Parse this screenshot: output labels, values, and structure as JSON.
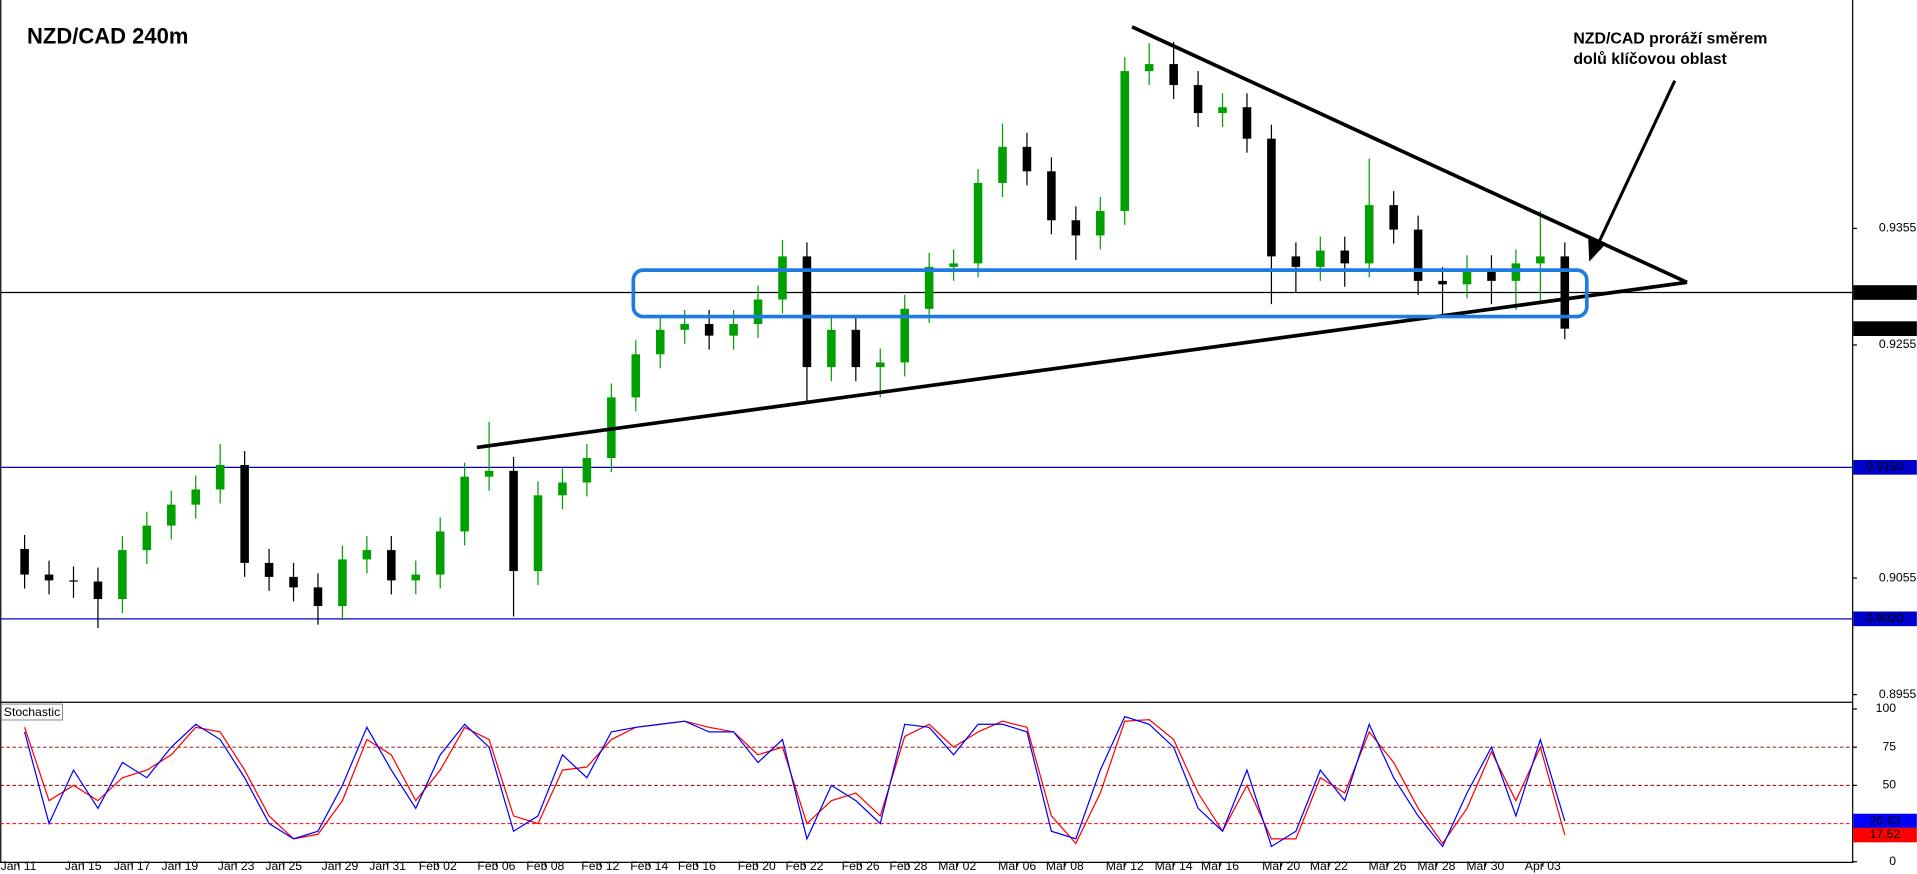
{
  "chart_data": [
    {
      "type": "candlestick",
      "title": "NZD/CAD 240m",
      "annotation": [
        "NZD/CAD proráží směrem",
        "dolů klíčovou oblast"
      ],
      "up_color": "#00a000",
      "down_color": "#000000",
      "open": [
        0.908,
        0.9058,
        0.9053,
        0.9052,
        0.9037,
        0.9079,
        0.91,
        0.9118,
        0.9131,
        0.9152,
        0.9068,
        0.9056,
        0.9047,
        0.9031,
        0.9071,
        0.9079,
        0.9053,
        0.9058,
        0.9095,
        0.9142,
        0.9147,
        0.9061,
        0.9126,
        0.9137,
        0.9158,
        0.921,
        0.9247,
        0.9268,
        0.9273,
        0.9263,
        0.9273,
        0.9294,
        0.9331,
        0.9236,
        0.9268,
        0.9236,
        0.924,
        0.9286,
        0.9322,
        0.9325,
        0.9394,
        0.9425,
        0.9404,
        0.9362,
        0.9349,
        0.937,
        0.949,
        0.9496,
        0.9478,
        0.9454,
        0.9459,
        0.9432,
        0.9331,
        0.9322,
        0.9336,
        0.9325,
        0.9375,
        0.9354,
        0.931,
        0.9307,
        0.932,
        0.931,
        0.9325,
        0.9331
      ],
      "high": [
        0.9092,
        0.907,
        0.9065,
        0.9064,
        0.9091,
        0.9112,
        0.913,
        0.9143,
        0.917,
        0.9164,
        0.908,
        0.9068,
        0.9059,
        0.9083,
        0.9091,
        0.9091,
        0.907,
        0.9107,
        0.9154,
        0.9189,
        0.9159,
        0.9138,
        0.9149,
        0.917,
        0.9222,
        0.9259,
        0.928,
        0.9285,
        0.9285,
        0.9285,
        0.9306,
        0.9345,
        0.9343,
        0.928,
        0.928,
        0.9252,
        0.9298,
        0.9334,
        0.9337,
        0.9406,
        0.9445,
        0.9437,
        0.9416,
        0.9374,
        0.9382,
        0.9502,
        0.9514,
        0.9515,
        0.949,
        0.9471,
        0.9471,
        0.9444,
        0.9343,
        0.9348,
        0.9348,
        0.9415,
        0.9387,
        0.9366,
        0.9322,
        0.9332,
        0.9332,
        0.9337,
        0.937,
        0.9343
      ],
      "low": [
        0.9046,
        0.9041,
        0.9038,
        0.9012,
        0.9025,
        0.9067,
        0.9088,
        0.9106,
        0.9119,
        0.9056,
        0.9044,
        0.9035,
        0.9015,
        0.9019,
        0.9059,
        0.9041,
        0.9041,
        0.9046,
        0.9083,
        0.913,
        0.9022,
        0.9049,
        0.9114,
        0.9125,
        0.9146,
        0.9198,
        0.9235,
        0.9256,
        0.9251,
        0.9251,
        0.9261,
        0.9282,
        0.9205,
        0.9224,
        0.9224,
        0.921,
        0.9228,
        0.9274,
        0.931,
        0.9313,
        0.9382,
        0.9392,
        0.935,
        0.9328,
        0.9337,
        0.9358,
        0.9478,
        0.9466,
        0.9442,
        0.9442,
        0.942,
        0.929,
        0.93,
        0.931,
        0.9305,
        0.9313,
        0.9342,
        0.9298,
        0.928,
        0.9295,
        0.929,
        0.9285,
        0.929,
        0.926
      ],
      "close": [
        0.9058,
        0.9053,
        0.9052,
        0.9037,
        0.9079,
        0.91,
        0.9118,
        0.9131,
        0.9152,
        0.9068,
        0.9056,
        0.9047,
        0.9031,
        0.9071,
        0.9079,
        0.9053,
        0.9058,
        0.9095,
        0.9142,
        0.9147,
        0.9061,
        0.9126,
        0.9137,
        0.9158,
        0.921,
        0.9247,
        0.9268,
        0.9273,
        0.9263,
        0.9273,
        0.9294,
        0.9331,
        0.9236,
        0.9268,
        0.9236,
        0.924,
        0.9286,
        0.9322,
        0.9325,
        0.9394,
        0.9425,
        0.9404,
        0.9362,
        0.9349,
        0.937,
        0.949,
        0.9496,
        0.9478,
        0.9454,
        0.9459,
        0.9432,
        0.9331,
        0.9322,
        0.9336,
        0.9325,
        0.9375,
        0.9354,
        0.931,
        0.9307,
        0.932,
        0.931,
        0.9325,
        0.9331,
        0.9269
      ],
      "ylim": [
        0.895,
        0.9551
      ],
      "yticks": [
        0.9355,
        0.9255,
        0.9055,
        0.8955
      ],
      "levels": [
        {
          "value": 0.93,
          "label": "0.9300",
          "color": "#000000"
        },
        {
          "value": 0.915,
          "label": "0.9150",
          "color": "#0000cc"
        },
        {
          "value": 0.902,
          "label": "0.9020",
          "color": "#0000cc"
        }
      ],
      "xlim": [
        -1,
        74.75
      ],
      "xticks": [
        {
          "value": -0.25,
          "label": "Jan 11"
        },
        {
          "value": 2.4,
          "label": "Jan 15"
        },
        {
          "value": 4.4,
          "label": "Jan 17"
        },
        {
          "value": 6.35,
          "label": "Jan 19"
        },
        {
          "value": 8.65,
          "label": "Jan 23"
        },
        {
          "value": 10.6,
          "label": "Jan 25"
        },
        {
          "value": 12.9,
          "label": "Jan 29"
        },
        {
          "value": 14.85,
          "label": "Jan 31"
        },
        {
          "value": 16.9,
          "label": "Feb 02"
        },
        {
          "value": 19.3,
          "label": "Feb 06"
        },
        {
          "value": 21.3,
          "label": "Feb 08"
        },
        {
          "value": 23.55,
          "label": "Feb 12"
        },
        {
          "value": 25.55,
          "label": "Feb 14"
        },
        {
          "value": 27.5,
          "label": "Feb 16"
        },
        {
          "value": 29.95,
          "label": "Feb 20"
        },
        {
          "value": 31.9,
          "label": "Feb 22"
        },
        {
          "value": 34.2,
          "label": "Feb 26"
        },
        {
          "value": 36.15,
          "label": "Feb 28"
        },
        {
          "value": 38.15,
          "label": "Mar 02"
        },
        {
          "value": 40.6,
          "label": "Mar 06"
        },
        {
          "value": 42.55,
          "label": "Mar 08"
        },
        {
          "value": 45,
          "label": "Mar 12"
        },
        {
          "value": 47,
          "label": "Mar 14"
        },
        {
          "value": 48.9,
          "label": "Mar 16"
        },
        {
          "value": 51.4,
          "label": "Mar 20"
        },
        {
          "value": 53.35,
          "label": "Mar 22"
        },
        {
          "value": 55.75,
          "label": "Mar 26"
        },
        {
          "value": 57.75,
          "label": "Mar 28"
        },
        {
          "value": 59.75,
          "label": "Mar 30"
        },
        {
          "value": 62.1,
          "label": "Apr 03"
        }
      ]
    },
    {
      "type": "line",
      "title": "Stochastic",
      "ylim": [
        0,
        100
      ],
      "yticks": [
        100,
        75,
        50,
        0
      ],
      "levels": [
        75,
        50,
        25
      ],
      "series": [
        {
          "color": "#0000ff",
          "values": [
            85,
            25,
            60,
            35,
            65,
            55,
            75,
            90,
            80,
            55,
            25,
            15,
            20,
            50,
            88,
            60,
            35,
            70,
            90,
            75,
            20,
            30,
            70,
            55,
            85,
            88,
            90,
            92,
            85,
            85,
            65,
            80,
            15,
            50,
            40,
            25,
            90,
            88,
            70,
            90,
            90,
            85,
            20,
            15,
            60,
            95,
            90,
            75,
            35,
            20,
            60,
            10,
            20,
            60,
            40,
            90,
            55,
            30,
            10,
            45,
            75,
            30,
            80,
            26.63
          ]
        },
        {
          "color": "#ff0000",
          "values": [
            88,
            40,
            50,
            40,
            55,
            60,
            70,
            88,
            85,
            60,
            30,
            15,
            18,
            40,
            80,
            70,
            40,
            60,
            88,
            80,
            30,
            25,
            60,
            62,
            80,
            88,
            90,
            92,
            88,
            85,
            70,
            75,
            25,
            40,
            45,
            30,
            82,
            90,
            75,
            85,
            92,
            88,
            30,
            12,
            45,
            92,
            93,
            80,
            45,
            20,
            50,
            15,
            15,
            55,
            45,
            85,
            65,
            35,
            12,
            35,
            72,
            40,
            75,
            17.52
          ]
        }
      ]
    }
  ]
}
